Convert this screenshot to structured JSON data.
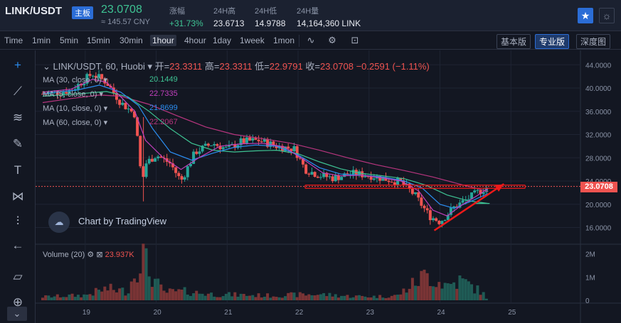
{
  "header": {
    "pair": "LINK/USDT",
    "badge": "主板",
    "last_price": "23.0708",
    "cny_price": "≈ 145.57 CNY",
    "change_label": "涨幅",
    "change_value": "+31.73%",
    "high_label": "24H高",
    "high_value": "23.6713",
    "low_label": "24H低",
    "low_value": "14.9788",
    "volume_label": "24H量",
    "volume_value": "14,164,360 LINK",
    "favorite_icon": "star-icon",
    "theme_icon": "sun-icon"
  },
  "toolbar": {
    "intervals": [
      "Time",
      "1min",
      "5min",
      "15min",
      "30min",
      "1hour",
      "4hour",
      "1day",
      "1week",
      "1mon"
    ],
    "active_interval": "1hour",
    "icons": [
      "indicators-icon",
      "settings-icon",
      "screenshot-icon"
    ],
    "versions": [
      "基本版",
      "专业版",
      "深度图"
    ],
    "active_version": "专业版"
  },
  "left_tools": [
    "crosshair-icon",
    "trendline-icon",
    "fib-icon",
    "brush-icon",
    "text-icon",
    "pattern-icon",
    "measure-icon",
    "back-arrow-icon",
    "ruler-icon",
    "zoom-icon",
    "chevron-down-icon"
  ],
  "legend": {
    "symbol": "LINK/USDT, 60, Huobi",
    "open_label": "开=",
    "open": "23.3311",
    "high_label": "高=",
    "high": "23.3311",
    "low_label": "低=",
    "low": "22.9791",
    "close_label": "收=",
    "close": "23.0708",
    "change": "−0.2591 (−1.11%)",
    "ma": [
      {
        "label": "MA (30, close, 0)",
        "value": "20.1449",
        "color": "#3ec393"
      },
      {
        "label": "MA (5, close, 0)",
        "value": "22.7335",
        "color": "#c23fbd"
      },
      {
        "label": "MA (10, close, 0)",
        "value": "21.8699",
        "color": "#2b8df0"
      },
      {
        "label": "MA (60, close, 0)",
        "value": "22.2067",
        "color": "#b7357e"
      }
    ],
    "volume_label": "Volume (20)",
    "volume_value": "23.937K"
  },
  "watermark": "Chart by TradingView",
  "current_price_tag": "23.0708",
  "chart_data": {
    "type": "candlestick",
    "y_ticks": [
      "44.0000",
      "40.0000",
      "36.0000",
      "32.0000",
      "28.0000",
      "24.0000",
      "20.0000",
      "16.0000"
    ],
    "y_tick_values": [
      44,
      40,
      36,
      32,
      28,
      24,
      20,
      16
    ],
    "ylim": [
      13.5,
      45.5
    ],
    "x_ticks": [
      "19",
      "20",
      "21",
      "22",
      "23",
      "24",
      "25"
    ],
    "x_tick_values": [
      19,
      20,
      21,
      22,
      23,
      24,
      25
    ],
    "xlim": [
      18.35,
      25.95
    ],
    "volume_ticks": [
      "2M",
      "1M",
      "0"
    ],
    "volume_tick_values": [
      2000000,
      1000000,
      0
    ],
    "volume_lim": [
      0,
      2200000
    ],
    "current_price": 23.0708,
    "colors": {
      "up": "#26a69a",
      "down": "#ef5350",
      "ma5": "#c23fbd",
      "ma10": "#2b8df0",
      "ma30": "#3ec393",
      "ma60": "#b7357e",
      "annotation": "#ef1a1a"
    },
    "close_path": [
      [
        18.4,
        39.0
      ],
      [
        18.8,
        39.6
      ],
      [
        19.1,
        42.5
      ],
      [
        19.3,
        41.0
      ],
      [
        19.5,
        37.5
      ],
      [
        19.7,
        35.5
      ],
      [
        19.8,
        23.5
      ],
      [
        19.85,
        27.0
      ],
      [
        20.0,
        28.5
      ],
      [
        20.2,
        27.0
      ],
      [
        20.35,
        24.0
      ],
      [
        20.55,
        29.0
      ],
      [
        20.8,
        30.5
      ],
      [
        21.0,
        29.5
      ],
      [
        21.2,
        30.8
      ],
      [
        21.45,
        31.0
      ],
      [
        21.7,
        30.0
      ],
      [
        21.95,
        29.5
      ],
      [
        22.1,
        26.0
      ],
      [
        22.3,
        25.0
      ],
      [
        22.5,
        24.5
      ],
      [
        22.75,
        25.3
      ],
      [
        23.0,
        25.0
      ],
      [
        23.25,
        24.3
      ],
      [
        23.45,
        23.8
      ],
      [
        23.65,
        21.5
      ],
      [
        23.85,
        18.0
      ],
      [
        24.0,
        17.0
      ],
      [
        24.2,
        19.5
      ],
      [
        24.4,
        21.0
      ],
      [
        24.55,
        22.2
      ],
      [
        24.68,
        23.07
      ]
    ],
    "ma5_path": [
      [
        18.4,
        39.3
      ],
      [
        18.8,
        39.8
      ],
      [
        19.1,
        41.5
      ],
      [
        19.3,
        41.0
      ],
      [
        19.5,
        38.5
      ],
      [
        19.7,
        36.0
      ],
      [
        19.85,
        31.0
      ],
      [
        20.1,
        28.0
      ],
      [
        20.35,
        26.0
      ],
      [
        20.6,
        28.0
      ],
      [
        20.9,
        30.0
      ],
      [
        21.2,
        30.4
      ],
      [
        21.5,
        30.5
      ],
      [
        21.8,
        29.9
      ],
      [
        22.1,
        27.5
      ],
      [
        22.35,
        25.4
      ],
      [
        22.6,
        24.9
      ],
      [
        22.9,
        25.0
      ],
      [
        23.2,
        24.5
      ],
      [
        23.45,
        24.0
      ],
      [
        23.7,
        22.3
      ],
      [
        23.9,
        19.0
      ],
      [
        24.1,
        18.0
      ],
      [
        24.3,
        19.8
      ],
      [
        24.5,
        21.3
      ],
      [
        24.68,
        22.73
      ]
    ],
    "ma10_path": [
      [
        18.4,
        39.0
      ],
      [
        18.9,
        39.7
      ],
      [
        19.2,
        40.5
      ],
      [
        19.5,
        39.3
      ],
      [
        19.75,
        37.0
      ],
      [
        19.95,
        33.0
      ],
      [
        20.2,
        29.0
      ],
      [
        20.5,
        27.6
      ],
      [
        20.8,
        28.8
      ],
      [
        21.1,
        29.8
      ],
      [
        21.4,
        30.2
      ],
      [
        21.7,
        30.0
      ],
      [
        22.0,
        28.5
      ],
      [
        22.3,
        26.3
      ],
      [
        22.6,
        25.2
      ],
      [
        22.9,
        25.0
      ],
      [
        23.2,
        24.7
      ],
      [
        23.5,
        24.0
      ],
      [
        23.75,
        22.8
      ],
      [
        24.0,
        20.0
      ],
      [
        24.2,
        19.3
      ],
      [
        24.45,
        20.6
      ],
      [
        24.68,
        21.87
      ]
    ],
    "ma30_path": [
      [
        18.4,
        38.6
      ],
      [
        18.9,
        39.0
      ],
      [
        19.3,
        39.4
      ],
      [
        19.6,
        38.5
      ],
      [
        19.9,
        36.0
      ],
      [
        20.2,
        33.0
      ],
      [
        20.5,
        30.5
      ],
      [
        20.8,
        29.3
      ],
      [
        21.1,
        29.0
      ],
      [
        21.4,
        29.2
      ],
      [
        21.7,
        29.3
      ],
      [
        22.0,
        28.7
      ],
      [
        22.3,
        27.3
      ],
      [
        22.6,
        26.1
      ],
      [
        22.9,
        25.3
      ],
      [
        23.2,
        24.9
      ],
      [
        23.5,
        24.4
      ],
      [
        23.8,
        23.3
      ],
      [
        24.1,
        21.6
      ],
      [
        24.4,
        20.6
      ],
      [
        24.68,
        20.14
      ]
    ],
    "ma60_path": [
      [
        18.4,
        37.5
      ],
      [
        18.8,
        38.2
      ],
      [
        19.2,
        38.8
      ],
      [
        19.5,
        38.6
      ],
      [
        19.9,
        37.2
      ],
      [
        20.3,
        35.2
      ],
      [
        20.7,
        33.3
      ],
      [
        21.1,
        32.0
      ],
      [
        21.5,
        31.3
      ],
      [
        21.9,
        30.5
      ],
      [
        22.3,
        29.3
      ],
      [
        22.7,
        28.0
      ],
      [
        23.1,
        26.8
      ],
      [
        23.5,
        25.8
      ],
      [
        23.9,
        24.7
      ],
      [
        24.3,
        23.4
      ],
      [
        24.68,
        22.21
      ]
    ],
    "volume_profile": [
      [
        18.4,
        150000
      ],
      [
        19.0,
        220000
      ],
      [
        19.3,
        500000
      ],
      [
        19.6,
        380000
      ],
      [
        19.8,
        2100000
      ],
      [
        19.9,
        1200000
      ],
      [
        20.1,
        350000
      ],
      [
        20.4,
        380000
      ],
      [
        20.8,
        260000
      ],
      [
        21.2,
        230000
      ],
      [
        21.6,
        200000
      ],
      [
        22.0,
        240000
      ],
      [
        22.3,
        260000
      ],
      [
        22.7,
        180000
      ],
      [
        23.1,
        160000
      ],
      [
        23.4,
        200000
      ],
      [
        23.6,
        650000
      ],
      [
        23.8,
        1100000
      ],
      [
        23.95,
        850000
      ],
      [
        24.1,
        650000
      ],
      [
        24.3,
        850000
      ],
      [
        24.45,
        600000
      ],
      [
        24.6,
        320000
      ],
      [
        24.68,
        24000
      ]
    ],
    "annotation_rect": {
      "x_from": 22.1,
      "x_to": 25.2,
      "y_from": 22.75,
      "y_to": 23.3
    },
    "annotation_arrow": {
      "x_from": 23.92,
      "y_from": 15.5,
      "x_to": 24.9,
      "y_to": 23.5
    }
  }
}
